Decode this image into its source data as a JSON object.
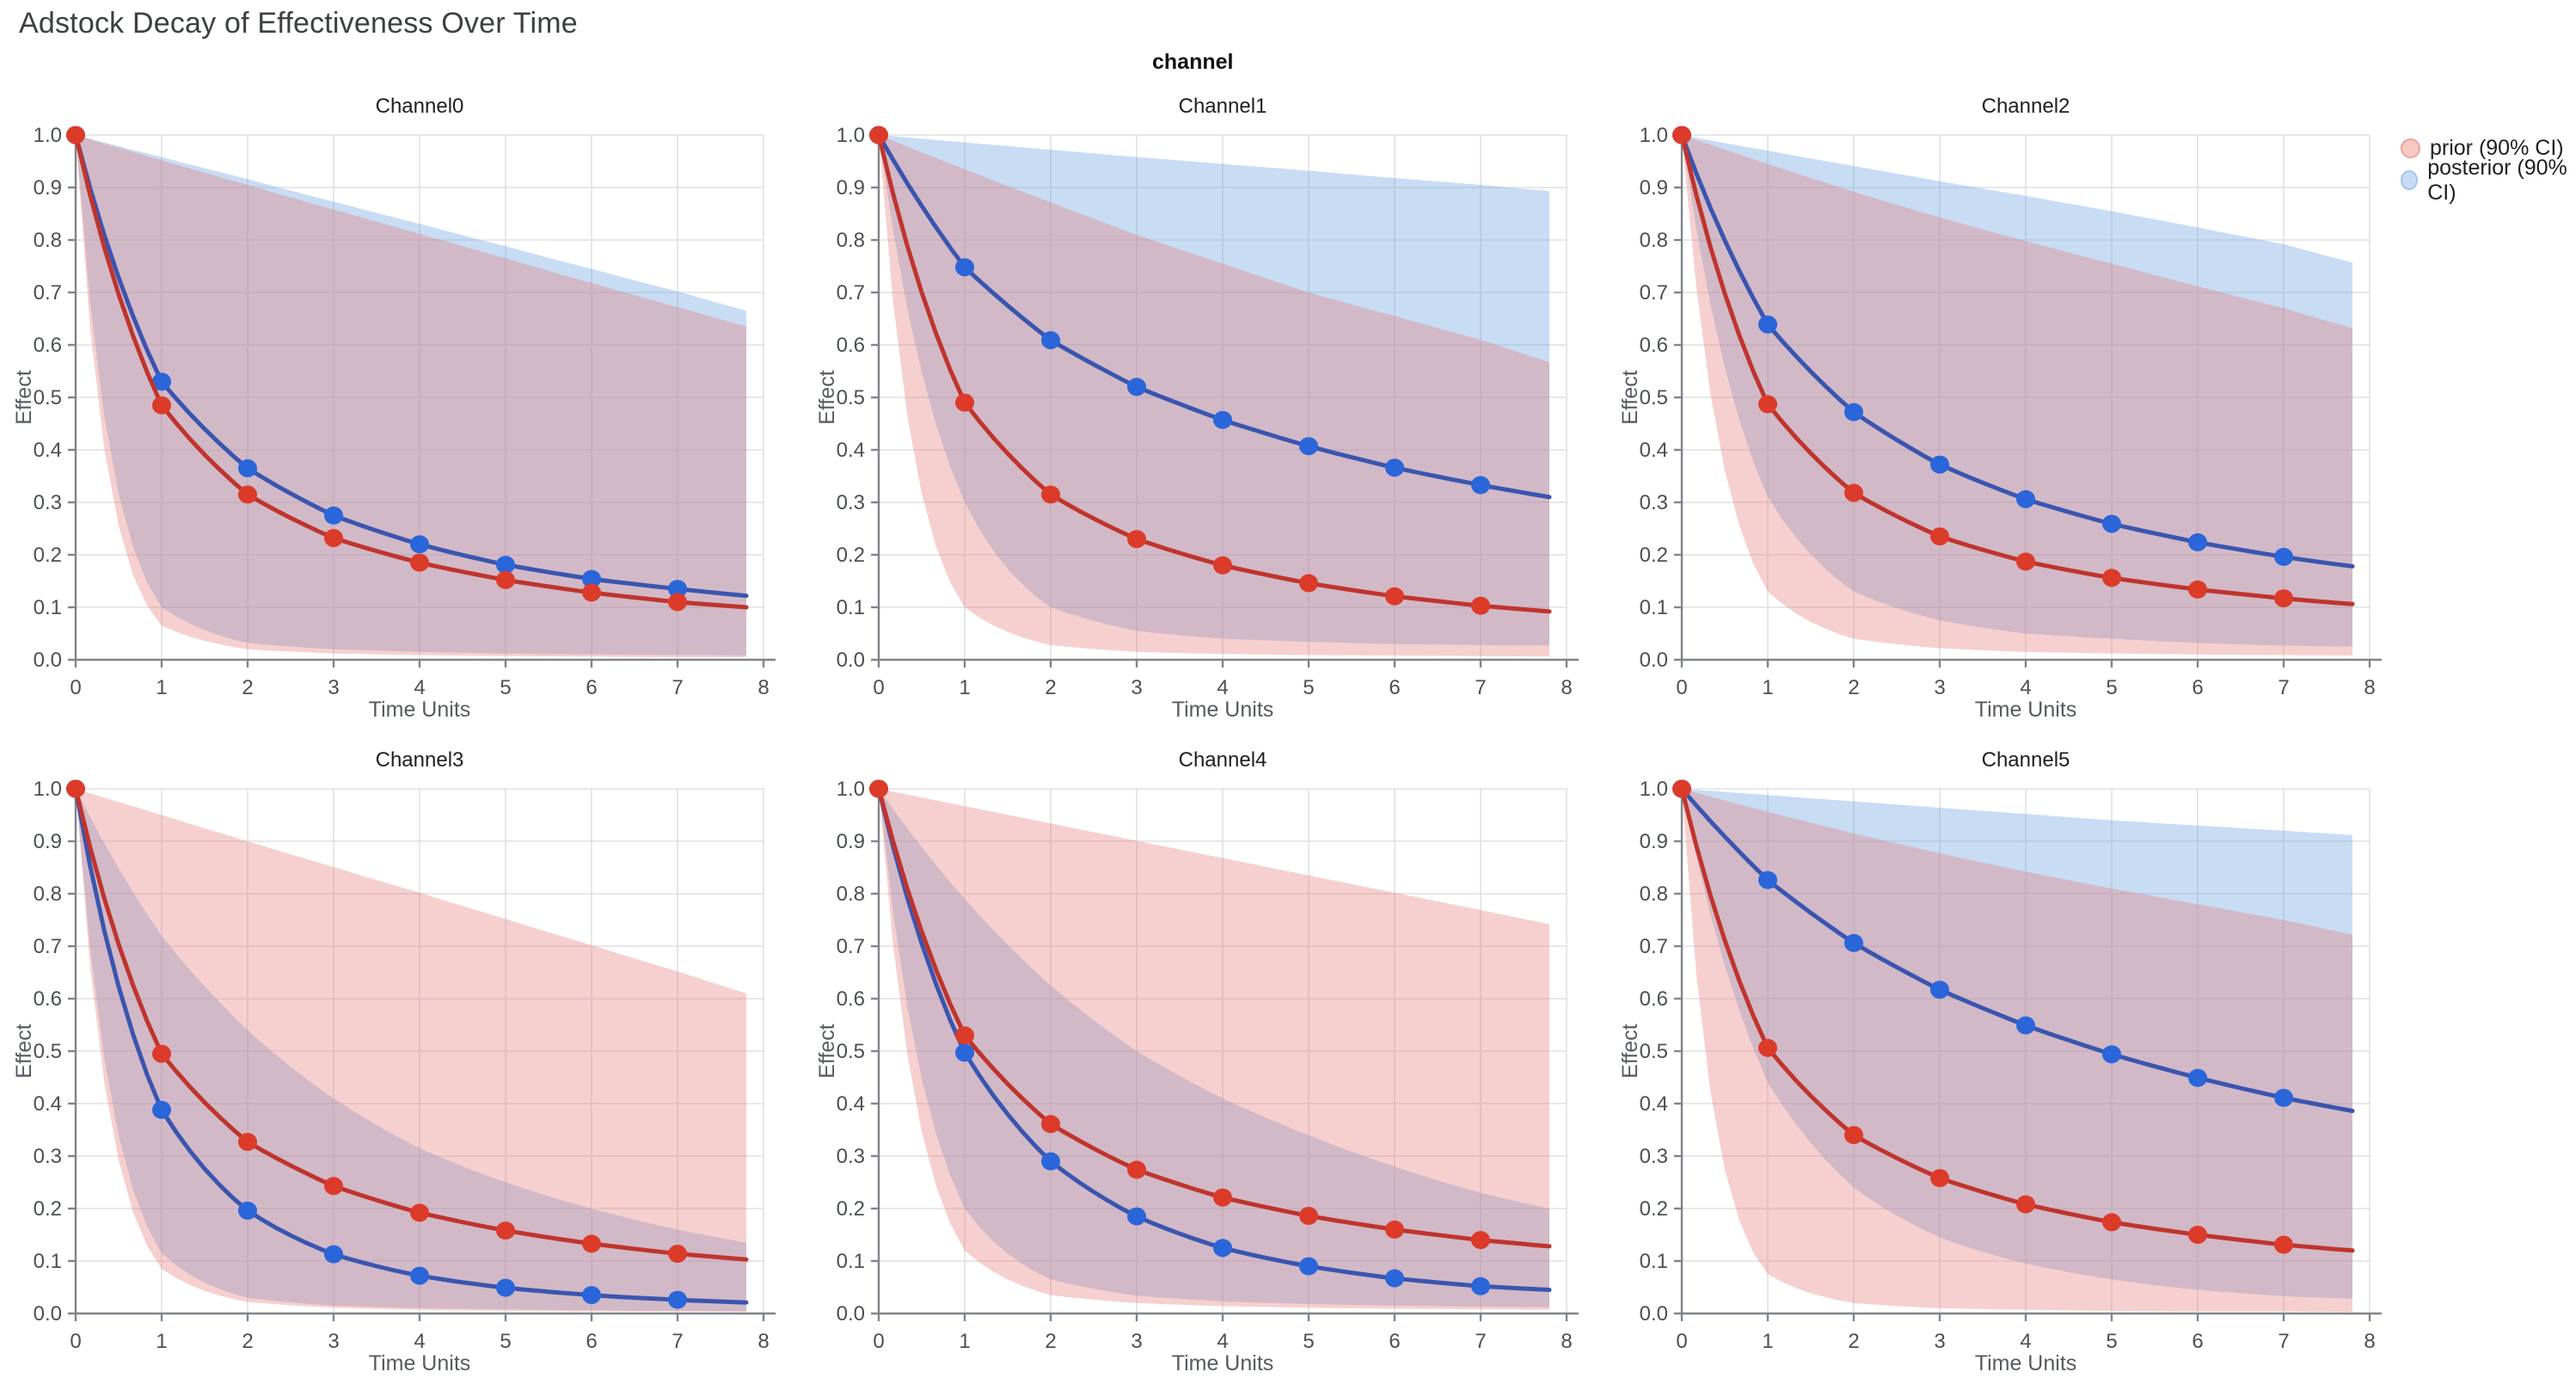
{
  "page": {
    "title": "Adstock Decay of Effectiveness Over Time",
    "facet_label": "channel"
  },
  "legend": {
    "items": [
      {
        "label": "prior (90% CI)",
        "fill": "#f6c9c5",
        "stroke": "#eda29b"
      },
      {
        "label": "posterior (90% CI)",
        "fill": "#cadcf5",
        "stroke": "#a2c3ee"
      }
    ]
  },
  "axes": {
    "x_title": "Time Units",
    "y_title": "Effect",
    "x_ticks": [
      "0",
      "1",
      "2",
      "3",
      "4",
      "5",
      "6",
      "7",
      "8"
    ],
    "y_ticks": [
      "0.0",
      "0.1",
      "0.2",
      "0.3",
      "0.4",
      "0.5",
      "0.6",
      "0.7",
      "0.8",
      "0.9",
      "1.0"
    ],
    "x_max": 8,
    "y_max": 1.0,
    "curve_end_x": 7.8,
    "band_x": [
      0,
      1,
      2,
      3,
      4,
      5,
      6,
      7,
      7.8
    ],
    "grid": true
  },
  "style": {
    "prior_line": "#bf342d",
    "prior_marker": "#dc3b2a",
    "posterior_line": "#3a55af",
    "posterior_marker": "#2a66d9",
    "prior_band_fill": "#e57874",
    "prior_band_opacity": 0.35,
    "posterior_band_fill": "#69a0e1",
    "posterior_band_opacity": 0.37,
    "grid_color": "#e1e1e3",
    "axis_color": "#7f8489",
    "tick_label_color": "#4b5054",
    "axis_title_color": "#565b60",
    "subplot_title_color": "#1f1f1f"
  },
  "chart_data": {
    "type": "line",
    "title": "Adstock Decay of Effectiveness Over Time",
    "xlabel": "Time Units",
    "ylabel": "Effect",
    "x": [
      0,
      1,
      2,
      3,
      4,
      5,
      6,
      7
    ],
    "series_names": [
      "prior mean",
      "posterior mean"
    ],
    "charts": [
      {
        "title": "Channel0",
        "prior": {
          "values": [
            1.0,
            0.485,
            0.315,
            0.232,
            0.185,
            0.152,
            0.128,
            0.11
          ],
          "end": 0.1,
          "band_upper": [
            1.0,
            0.952,
            0.905,
            0.858,
            0.812,
            0.765,
            0.718,
            0.672,
            0.635
          ],
          "band_lower": [
            1.0,
            0.065,
            0.02,
            0.012,
            0.009,
            0.007,
            0.006,
            0.005,
            0.005
          ]
        },
        "posterior": {
          "values": [
            1.0,
            0.53,
            0.365,
            0.275,
            0.22,
            0.181,
            0.154,
            0.135
          ],
          "end": 0.122,
          "band_upper": [
            1.0,
            0.958,
            0.916,
            0.873,
            0.831,
            0.788,
            0.745,
            0.702,
            0.665
          ],
          "band_lower": [
            1.0,
            0.1,
            0.032,
            0.02,
            0.015,
            0.012,
            0.01,
            0.009,
            0.008
          ]
        }
      },
      {
        "title": "Channel1",
        "prior": {
          "values": [
            1.0,
            0.49,
            0.315,
            0.23,
            0.18,
            0.146,
            0.121,
            0.103
          ],
          "end": 0.092,
          "band_upper": [
            1.0,
            0.935,
            0.872,
            0.81,
            0.755,
            0.7,
            0.655,
            0.61,
            0.567
          ],
          "band_lower": [
            1.0,
            0.1,
            0.028,
            0.015,
            0.011,
            0.009,
            0.008,
            0.007,
            0.006
          ]
        },
        "posterior": {
          "values": [
            1.0,
            0.748,
            0.609,
            0.52,
            0.457,
            0.407,
            0.366,
            0.333
          ],
          "end": 0.31,
          "band_upper": [
            1.0,
            0.986,
            0.972,
            0.958,
            0.945,
            0.932,
            0.918,
            0.905,
            0.893
          ],
          "band_lower": [
            1.0,
            0.3,
            0.1,
            0.055,
            0.04,
            0.034,
            0.03,
            0.028,
            0.027
          ]
        }
      },
      {
        "title": "Channel2",
        "prior": {
          "values": [
            1.0,
            0.487,
            0.318,
            0.235,
            0.187,
            0.156,
            0.134,
            0.117
          ],
          "end": 0.106,
          "band_upper": [
            1.0,
            0.945,
            0.892,
            0.843,
            0.798,
            0.755,
            0.712,
            0.67,
            0.632
          ],
          "band_lower": [
            1.0,
            0.13,
            0.04,
            0.022,
            0.015,
            0.012,
            0.01,
            0.009,
            0.008
          ]
        },
        "posterior": {
          "values": [
            1.0,
            0.639,
            0.472,
            0.372,
            0.306,
            0.259,
            0.224,
            0.196
          ],
          "end": 0.178,
          "band_upper": [
            1.0,
            0.97,
            0.941,
            0.912,
            0.884,
            0.855,
            0.824,
            0.792,
            0.757
          ],
          "band_lower": [
            1.0,
            0.31,
            0.13,
            0.075,
            0.05,
            0.04,
            0.032,
            0.027,
            0.025
          ]
        }
      },
      {
        "title": "Channel3",
        "prior": {
          "values": [
            1.0,
            0.495,
            0.327,
            0.243,
            0.192,
            0.158,
            0.133,
            0.114
          ],
          "end": 0.103,
          "band_upper": [
            1.0,
            0.95,
            0.9,
            0.851,
            0.802,
            0.752,
            0.702,
            0.652,
            0.61
          ],
          "band_lower": [
            1.0,
            0.085,
            0.022,
            0.011,
            0.007,
            0.005,
            0.004,
            0.004,
            0.003
          ]
        },
        "posterior": {
          "values": [
            1.0,
            0.388,
            0.196,
            0.113,
            0.072,
            0.049,
            0.035,
            0.026
          ],
          "end": 0.021,
          "band_upper": [
            1.0,
            0.72,
            0.54,
            0.41,
            0.315,
            0.25,
            0.2,
            0.16,
            0.135
          ],
          "band_lower": [
            1.0,
            0.115,
            0.03,
            0.015,
            0.01,
            0.008,
            0.006,
            0.005,
            0.005
          ]
        }
      },
      {
        "title": "Channel4",
        "prior": {
          "values": [
            1.0,
            0.53,
            0.361,
            0.274,
            0.221,
            0.186,
            0.16,
            0.14
          ],
          "end": 0.128,
          "band_upper": [
            1.0,
            0.967,
            0.934,
            0.901,
            0.868,
            0.835,
            0.802,
            0.769,
            0.742
          ],
          "band_lower": [
            1.0,
            0.12,
            0.035,
            0.02,
            0.014,
            0.011,
            0.009,
            0.008,
            0.007
          ]
        },
        "posterior": {
          "values": [
            1.0,
            0.497,
            0.29,
            0.185,
            0.125,
            0.09,
            0.067,
            0.052
          ],
          "end": 0.045,
          "band_upper": [
            1.0,
            0.79,
            0.625,
            0.5,
            0.41,
            0.34,
            0.28,
            0.23,
            0.2
          ],
          "band_lower": [
            1.0,
            0.2,
            0.065,
            0.034,
            0.023,
            0.018,
            0.015,
            0.013,
            0.012
          ]
        }
      },
      {
        "title": "Channel5",
        "prior": {
          "values": [
            1.0,
            0.506,
            0.34,
            0.258,
            0.208,
            0.174,
            0.15,
            0.131
          ],
          "end": 0.12,
          "band_upper": [
            1.0,
            0.956,
            0.915,
            0.877,
            0.842,
            0.81,
            0.78,
            0.75,
            0.722
          ],
          "band_lower": [
            1.0,
            0.075,
            0.02,
            0.01,
            0.007,
            0.005,
            0.004,
            0.004,
            0.003
          ]
        },
        "posterior": {
          "values": [
            1.0,
            0.826,
            0.706,
            0.617,
            0.549,
            0.494,
            0.449,
            0.411
          ],
          "end": 0.386,
          "band_upper": [
            1.0,
            0.988,
            0.976,
            0.964,
            0.952,
            0.94,
            0.93,
            0.92,
            0.912
          ],
          "band_lower": [
            1.0,
            0.44,
            0.24,
            0.145,
            0.095,
            0.065,
            0.045,
            0.033,
            0.028
          ]
        }
      }
    ]
  }
}
